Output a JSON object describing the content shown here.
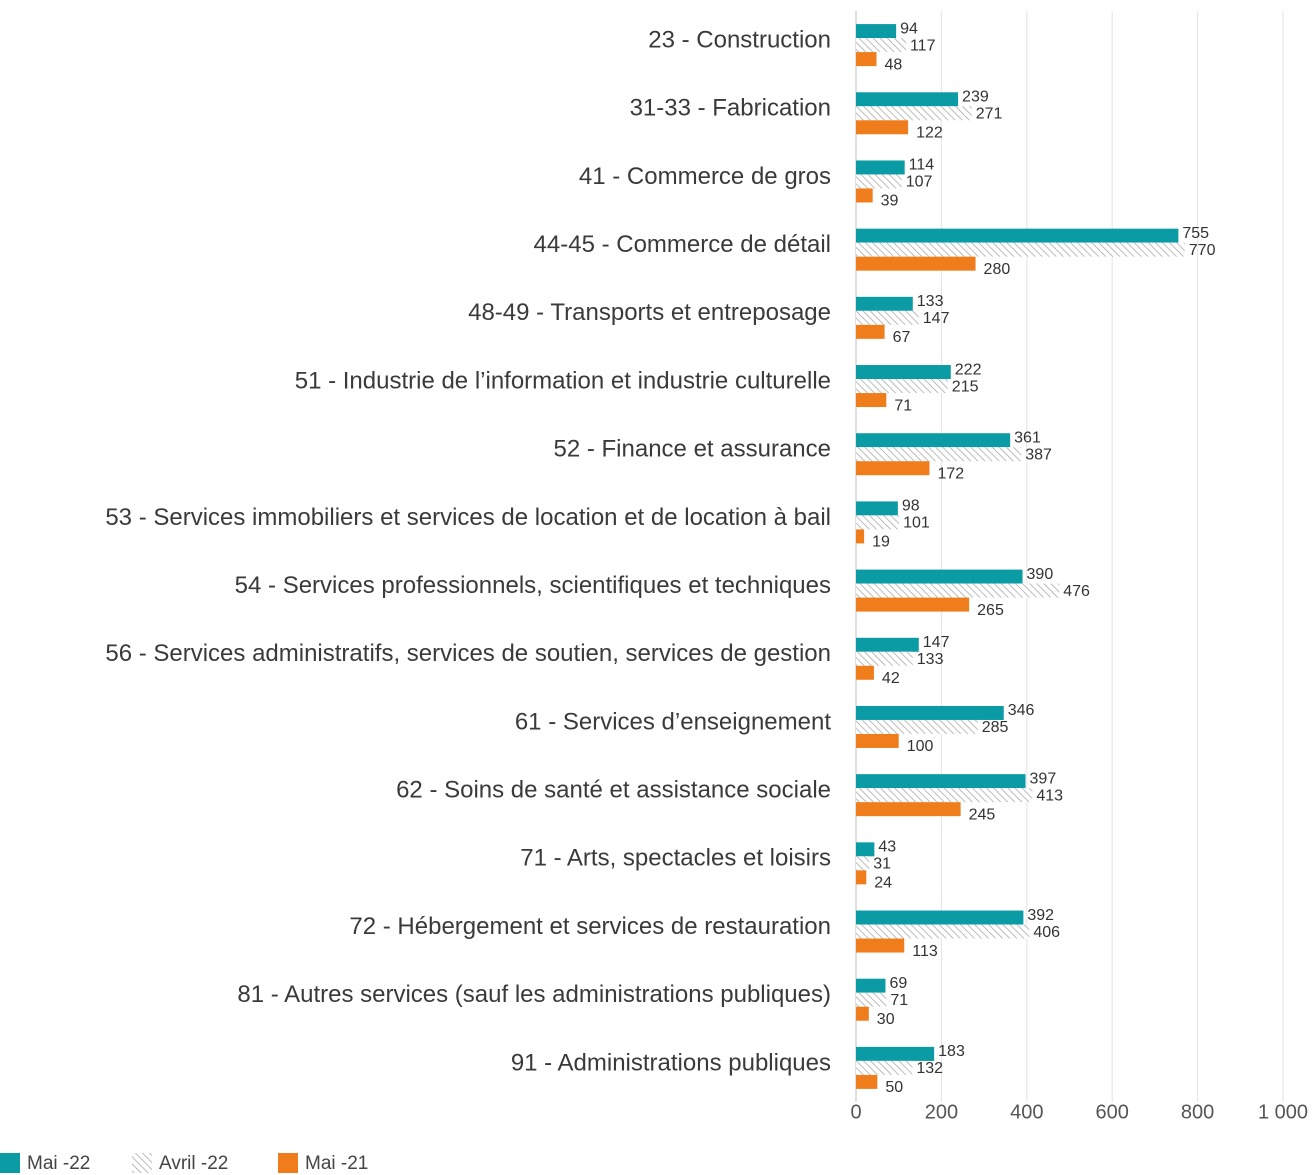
{
  "chart_data": {
    "type": "hbar",
    "categories": [
      "23 - Construction",
      "31-33 - Fabrication",
      "41 - Commerce de gros",
      "44-45 - Commerce de détail",
      "48-49 - Transports et entreposage",
      "51 - Industrie de l’information et industrie culturelle",
      "52 - Finance et assurance",
      "53 - Services immobiliers et services de location et de location à bail",
      "54 - Services professionnels, scientifiques et techniques",
      "56 - Services administratifs, services de soutien, services de gestion",
      "61 - Services d’enseignement",
      "62 - Soins de santé et assistance sociale",
      "71 - Arts, spectacles et loisirs",
      "72 - Hébergement et services de restauration",
      "81 - Autres services (sauf les administrations publiques)",
      "91 - Administrations publiques"
    ],
    "series": [
      {
        "name": "Mai -22",
        "color": "#0a9ba4",
        "values": [
          94,
          239,
          114,
          755,
          133,
          222,
          361,
          98,
          390,
          147,
          346,
          397,
          43,
          392,
          69,
          183
        ]
      },
      {
        "name": "Avril -22",
        "color": "#a6a6a6",
        "hatch": true,
        "values": [
          117,
          271,
          107,
          770,
          147,
          215,
          387,
          101,
          476,
          133,
          285,
          413,
          31,
          406,
          71,
          132
        ]
      },
      {
        "name": "Mai -21",
        "color": "#f07d1c",
        "values": [
          48,
          122,
          39,
          280,
          67,
          71,
          172,
          19,
          265,
          42,
          100,
          245,
          24,
          113,
          30,
          50
        ]
      }
    ],
    "xlim": [
      0,
      1000
    ],
    "xticks": [
      0,
      200,
      400,
      600,
      800,
      {
        "value": 1000,
        "label": "1 000"
      }
    ],
    "grid": true
  }
}
